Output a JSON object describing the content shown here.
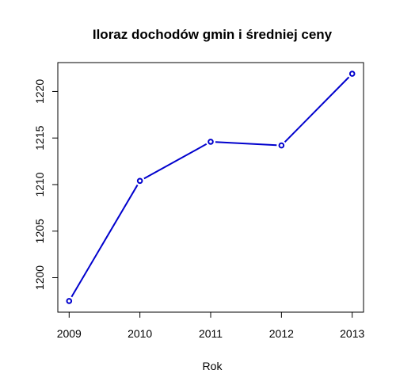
{
  "chart_data": {
    "type": "line",
    "title": "Iloraz dochodów gmin i średniej ceny",
    "xlabel": "Rok",
    "ylabel": "",
    "x": [
      2009,
      2010,
      2011,
      2012,
      2013
    ],
    "series": [
      {
        "values": [
          1197.5,
          1210.4,
          1214.6,
          1214.2,
          1221.9
        ],
        "color": "#0000cd"
      }
    ],
    "xlim": [
      2008.84,
      2013.16
    ],
    "ylim": [
      1196.3,
      1223.1
    ],
    "x_ticks": [
      2009,
      2010,
      2011,
      2012,
      2013
    ],
    "y_ticks": [
      1200,
      1205,
      1210,
      1215,
      1220
    ],
    "grid": false,
    "legend": "none",
    "markers": "open-circle"
  }
}
